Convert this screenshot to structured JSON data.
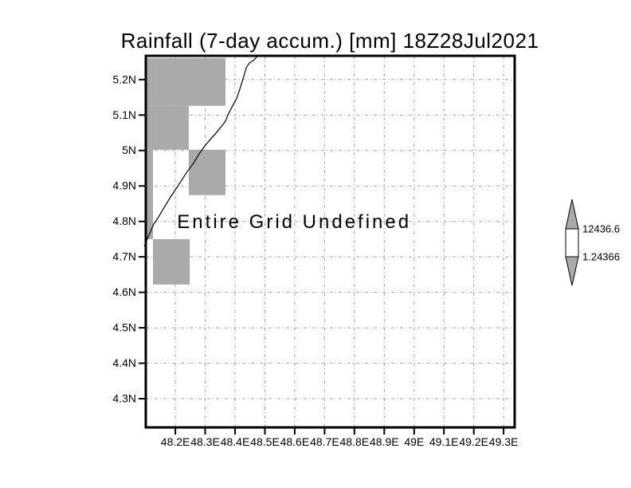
{
  "title": "Rainfall (7-day accum.) [mm] 18Z28Jul2021",
  "colors": {
    "background": "#ffffff",
    "frame": "#000000",
    "grid_line": "#a6a6a6",
    "undefined_fill": "#aaaaaa",
    "coastline": "#000000",
    "message_text": "#999999",
    "label_text": "#000000",
    "colorbar_arrow_fill": "#aaaaaa",
    "colorbar_box_fill": "#ffffff"
  },
  "chart_data": {
    "type": "heatmap",
    "title": "Rainfall (7-day accum.) [mm] 18Z28Jul2021",
    "subtitle": "",
    "message": "Entire Grid Undefined",
    "message_anchor": {
      "lon": 48.598,
      "lat": 4.8
    },
    "xlabel": "",
    "ylabel": "",
    "grid": true,
    "x_tick_labels": [
      "48.2E",
      "48.3E",
      "48.4E",
      "48.5E",
      "48.6E",
      "48.7E",
      "48.8E",
      "48.9E",
      "49E",
      "49.1E",
      "49.2E",
      "49.3E"
    ],
    "x_tick_values": [
      48.2,
      48.3,
      48.4,
      48.5,
      48.6,
      48.7,
      48.8,
      48.9,
      49.0,
      49.1,
      49.2,
      49.3
    ],
    "y_tick_labels": [
      "5.2N",
      "5.1N",
      "5N",
      "4.9N",
      "4.8N",
      "4.7N",
      "4.6N",
      "4.5N",
      "4.4N",
      "4.3N"
    ],
    "y_tick_values": [
      5.2,
      5.1,
      5.0,
      4.9,
      4.8,
      4.7,
      4.6,
      4.5,
      4.4,
      4.3
    ],
    "lon_range": [
      48.101,
      49.337
    ],
    "lat_range": [
      4.219,
      5.267
    ],
    "values_defined": false,
    "undefined_regions": [
      {
        "lon": [
          48.101,
          48.368
        ],
        "lat": [
          5.126,
          5.261
        ]
      },
      {
        "lon": [
          48.101,
          48.245
        ],
        "lat": [
          5.002,
          5.126
        ]
      },
      {
        "lon": [
          48.245,
          48.368
        ],
        "lat": [
          4.874,
          5.002
        ]
      },
      {
        "lon": [
          48.101,
          48.125
        ],
        "lat": [
          4.75,
          5.002
        ]
      },
      {
        "lon": [
          48.125,
          48.248
        ],
        "lat": [
          4.622,
          4.75
        ]
      }
    ],
    "coastline": [
      [
        48.096,
        4.73
      ],
      [
        48.109,
        4.757
      ],
      [
        48.128,
        4.793
      ],
      [
        48.144,
        4.813
      ],
      [
        48.163,
        4.84
      ],
      [
        48.184,
        4.869
      ],
      [
        48.211,
        4.903
      ],
      [
        48.237,
        4.937
      ],
      [
        48.261,
        4.964
      ],
      [
        48.28,
        4.991
      ],
      [
        48.299,
        5.013
      ],
      [
        48.315,
        5.029
      ],
      [
        48.334,
        5.047
      ],
      [
        48.352,
        5.065
      ],
      [
        48.368,
        5.083
      ],
      [
        48.379,
        5.105
      ],
      [
        48.392,
        5.126
      ],
      [
        48.406,
        5.148
      ],
      [
        48.416,
        5.173
      ],
      [
        48.422,
        5.189
      ],
      [
        48.43,
        5.211
      ],
      [
        48.438,
        5.234
      ],
      [
        48.448,
        5.247
      ],
      [
        48.462,
        5.254
      ],
      [
        48.475,
        5.266
      ]
    ],
    "colorbar": {
      "max_label": "12436.6",
      "min_label": "1.24366",
      "max_value": 12436.6,
      "min_value": 1.24366,
      "position": "right",
      "segments": [
        {
          "color": "#aaaaaa",
          "meaning": "above max"
        },
        {
          "color": "#ffffff",
          "meaning": "min to max"
        },
        {
          "color": "#aaaaaa",
          "meaning": "below min"
        }
      ]
    }
  }
}
